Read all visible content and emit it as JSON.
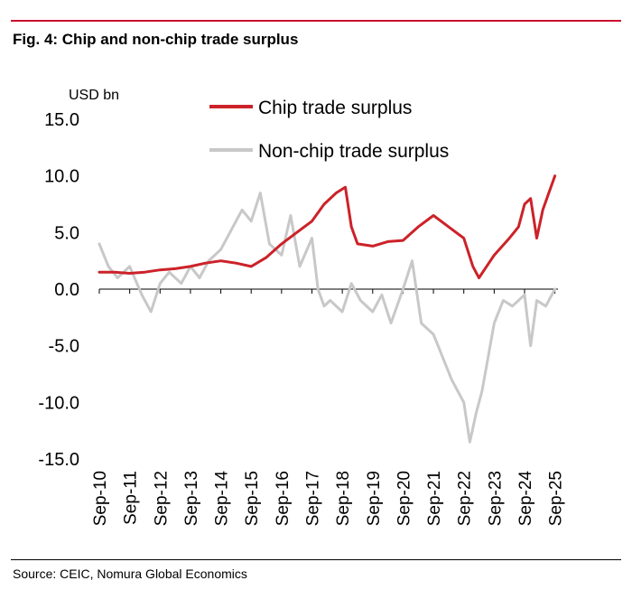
{
  "header": {
    "title": "Fig. 4: Chip and non-chip trade surplus"
  },
  "footer": {
    "source": "Source: CEIC, Nomura Global Economics"
  },
  "chart_data": {
    "type": "line",
    "title": "Fig. 4: Chip and non-chip trade surplus",
    "ylabel": "USD bn",
    "xlabel": "",
    "ylim": [
      -15,
      15
    ],
    "yticks": [
      15,
      10,
      5,
      0,
      -5,
      -10,
      -15
    ],
    "ytick_labels": [
      "15.0",
      "10.0",
      "5.0",
      "0.0",
      "-5.0",
      "-10.0",
      "-15.0"
    ],
    "x_tick_labels": [
      "Sep-10",
      "Sep-11",
      "Sep-12",
      "Sep-13",
      "Sep-14",
      "Sep-15",
      "Sep-16",
      "Sep-17",
      "Sep-18",
      "Sep-19",
      "Sep-20",
      "Sep-21",
      "Sep-22",
      "Sep-23",
      "Sep-24",
      "Sep-25"
    ],
    "x_range": [
      0,
      15.1
    ],
    "legend": [
      "Chip trade surplus",
      "Non-chip trade surplus"
    ],
    "legend_position": "top-right",
    "series": [
      {
        "name": "Chip trade surplus",
        "color": "#cc2229",
        "x": [
          0,
          0.5,
          1,
          1.5,
          2,
          2.5,
          3,
          3.5,
          4,
          4.5,
          5,
          5.5,
          6,
          6.5,
          7,
          7.4,
          7.8,
          8.1,
          8.3,
          8.5,
          9,
          9.5,
          10,
          10.5,
          11,
          11.5,
          12,
          12.3,
          12.5,
          12.8,
          13,
          13.5,
          13.8,
          14,
          14.2,
          14.4,
          14.6,
          15
        ],
        "values": [
          1.5,
          1.5,
          1.4,
          1.5,
          1.7,
          1.8,
          2.0,
          2.3,
          2.5,
          2.3,
          2.0,
          2.8,
          4.0,
          5.0,
          6.0,
          7.5,
          8.5,
          9.0,
          5.5,
          4.0,
          3.8,
          4.2,
          4.3,
          5.5,
          6.5,
          5.5,
          4.5,
          2.0,
          1.0,
          2.2,
          3.0,
          4.5,
          5.5,
          7.5,
          8.0,
          4.5,
          7.0,
          10.0
        ]
      },
      {
        "name": "Non-chip trade surplus",
        "color": "#c8c8c8",
        "x": [
          0,
          0.3,
          0.6,
          1,
          1.4,
          1.7,
          2,
          2.3,
          2.7,
          3,
          3.3,
          3.6,
          4,
          4.3,
          4.7,
          5,
          5.3,
          5.6,
          6,
          6.3,
          6.6,
          7,
          7.2,
          7.4,
          7.6,
          8,
          8.3,
          8.6,
          9,
          9.3,
          9.6,
          10,
          10.3,
          10.6,
          11,
          11.3,
          11.6,
          12,
          12.2,
          12.4,
          12.6,
          13,
          13.3,
          13.6,
          14,
          14.2,
          14.4,
          14.7,
          15
        ],
        "values": [
          4.0,
          2.0,
          1.0,
          2.0,
          -0.5,
          -2.0,
          0.5,
          1.5,
          0.5,
          2.0,
          1.0,
          2.5,
          3.5,
          5.0,
          7.0,
          6.0,
          8.5,
          4.0,
          3.0,
          6.5,
          2.0,
          4.5,
          0.0,
          -1.5,
          -1.0,
          -2.0,
          0.5,
          -1.0,
          -2.0,
          -0.5,
          -3.0,
          0.0,
          2.5,
          -3.0,
          -4.0,
          -6.0,
          -8.0,
          -10.0,
          -13.5,
          -11.0,
          -9.0,
          -3.0,
          -1.0,
          -1.5,
          -0.5,
          -5.0,
          -1.0,
          -1.5,
          0.0
        ]
      }
    ]
  }
}
